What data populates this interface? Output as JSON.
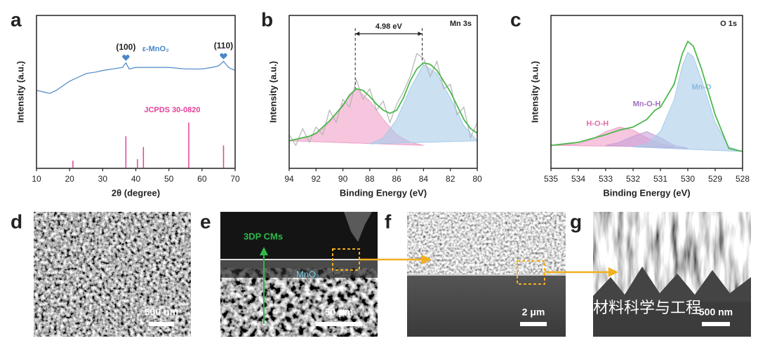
{
  "chart_data": [
    {
      "type": "line",
      "panel": "a",
      "xlabel": "2θ (degree)",
      "ylabel": "Intensity (a.u.)",
      "xlim": [
        10,
        70
      ],
      "xticks": [
        10,
        20,
        30,
        40,
        50,
        60,
        70
      ],
      "ylim": [
        0,
        100
      ],
      "series": [
        {
          "name": "ε-MnO₂",
          "color": "#4a86c8",
          "label_at": [
            46,
            78
          ],
          "x": [
            10,
            12,
            14,
            16,
            18,
            20,
            22,
            25,
            28,
            30,
            33,
            36,
            37,
            38,
            40,
            45,
            50,
            55,
            60,
            63,
            65,
            66.5,
            68,
            70
          ],
          "values": [
            51,
            50,
            49,
            51,
            54,
            57,
            59,
            62,
            63,
            64,
            65,
            66,
            69,
            65,
            66,
            66,
            66,
            65,
            65,
            66,
            67,
            70,
            66,
            64
          ]
        },
        {
          "name": "JCPDS 30-0820",
          "color": "#e4409a",
          "style": "stick",
          "label_at": [
            51,
            38
          ],
          "x": [
            21,
            37,
            40.5,
            42.3,
            56,
            66.5
          ],
          "values": [
            5,
            21,
            6,
            14,
            30,
            15
          ]
        }
      ],
      "annotations": [
        {
          "text": "(100)",
          "x": 37,
          "y": 79
        },
        {
          "text": "(110)",
          "x": 66.5,
          "y": 80
        }
      ]
    },
    {
      "type": "line",
      "panel": "b",
      "label": "Mn 3s",
      "xlabel": "Binding Energy (eV)",
      "ylabel": "Intensity (a.u.)",
      "xlim": [
        94,
        80
      ],
      "xticks": [
        94,
        92,
        90,
        88,
        86,
        84,
        82,
        80
      ],
      "ylim": [
        0,
        100
      ],
      "series": [
        {
          "color": "#f0a0c8",
          "style": "fill",
          "x": [
            94,
            92,
            91,
            90,
            89,
            88,
            87,
            86,
            85,
            84
          ],
          "values": [
            18,
            22,
            30,
            42,
            52,
            44,
            32,
            22,
            17,
            15
          ]
        },
        {
          "color": "#a8cbe8",
          "style": "fill",
          "x": [
            88,
            87,
            86,
            85,
            84,
            83,
            82,
            81,
            80
          ],
          "values": [
            16,
            20,
            32,
            52,
            68,
            62,
            46,
            28,
            18
          ]
        },
        {
          "color": "#b4b4b4",
          "x": [
            94,
            93.5,
            93,
            92.5,
            92,
            91.5,
            91,
            90.5,
            90,
            89.5,
            89,
            88.5,
            88,
            87.5,
            87,
            86.5,
            86,
            85.5,
            85,
            84.5,
            84,
            83.5,
            83,
            82.5,
            82,
            81.5,
            81,
            80.5,
            80
          ],
          "values": [
            22,
            15,
            26,
            17,
            27,
            22,
            38,
            30,
            45,
            40,
            58,
            45,
            52,
            38,
            44,
            30,
            42,
            50,
            60,
            75,
            72,
            60,
            70,
            52,
            55,
            35,
            40,
            20,
            30
          ]
        },
        {
          "color": "#4cb84c",
          "x": [
            94,
            93.5,
            93,
            92.5,
            92,
            91.5,
            91,
            90.5,
            90,
            89.5,
            89,
            88.5,
            88,
            87.5,
            87,
            86.5,
            86,
            85.5,
            85,
            84.5,
            84,
            83.5,
            83,
            82.5,
            82,
            81.5,
            81,
            80.5,
            80
          ],
          "values": [
            18,
            19,
            20,
            21,
            23,
            27,
            31,
            36,
            41,
            48,
            52,
            51,
            47,
            42,
            38,
            36,
            38,
            46,
            57,
            65,
            69,
            68,
            64,
            57,
            50,
            41,
            32,
            26,
            23
          ]
        }
      ],
      "span": {
        "text": "4.98 eV",
        "x1": 89.08,
        "x2": 84.1,
        "y": 88,
        "y_ends": [
          52,
          69
        ]
      }
    },
    {
      "type": "line",
      "panel": "c",
      "label": "O 1s",
      "xlabel": "Binding Energy (eV)",
      "ylabel": "Intensity (a.u.)",
      "xlim": [
        535,
        528
      ],
      "xticks": [
        535,
        534,
        533,
        532,
        531,
        530,
        529,
        528
      ],
      "ylim": [
        0,
        100
      ],
      "series": [
        {
          "name": "H-O-H",
          "color": "#f0a0c8",
          "style": "fill",
          "label_at": [
            533.3,
            29
          ],
          "x": [
            535,
            534,
            533.5,
            533,
            532.5,
            532,
            531.5,
            531,
            530.5
          ],
          "values": [
            15,
            16,
            19,
            24,
            27,
            25,
            20,
            16,
            14
          ]
        },
        {
          "name": "Mn-O-H",
          "color": "#c8a0d8",
          "style": "fill",
          "label_at": [
            531.5,
            42
          ],
          "x": [
            533,
            532.5,
            532,
            531.5,
            531,
            530.5,
            530
          ],
          "values": [
            15,
            17,
            21,
            24,
            20,
            15,
            13
          ]
        },
        {
          "name": "Mn-O",
          "color": "#a8cbe8",
          "style": "fill",
          "label_at": [
            529.5,
            53
          ],
          "x": [
            532,
            531.5,
            531,
            530.5,
            530.2,
            530,
            529.8,
            529.5,
            529,
            528.5,
            528
          ],
          "values": [
            14,
            16,
            24,
            45,
            67,
            76,
            73,
            58,
            30,
            14,
            11
          ]
        },
        {
          "color": "#4cb84c",
          "x": [
            535,
            534,
            533,
            532.5,
            532,
            531.5,
            531.2,
            531,
            530.5,
            530.2,
            530,
            529.8,
            529.5,
            529,
            528.5,
            528
          ],
          "values": [
            15,
            17,
            22,
            25,
            27,
            32,
            38,
            40,
            55,
            75,
            83,
            80,
            65,
            35,
            13,
            11
          ]
        }
      ]
    }
  ],
  "images": [
    {
      "panel": "d",
      "scale_bar": "500 nm"
    },
    {
      "panel": "e",
      "scale_bar": "50 μm",
      "labels": [
        "3DP CMs",
        "MnO₂"
      ]
    },
    {
      "panel": "f",
      "scale_bar": "2 μm"
    },
    {
      "panel": "g",
      "scale_bar": "500 nm"
    }
  ],
  "watermark": "材料科学与工程"
}
